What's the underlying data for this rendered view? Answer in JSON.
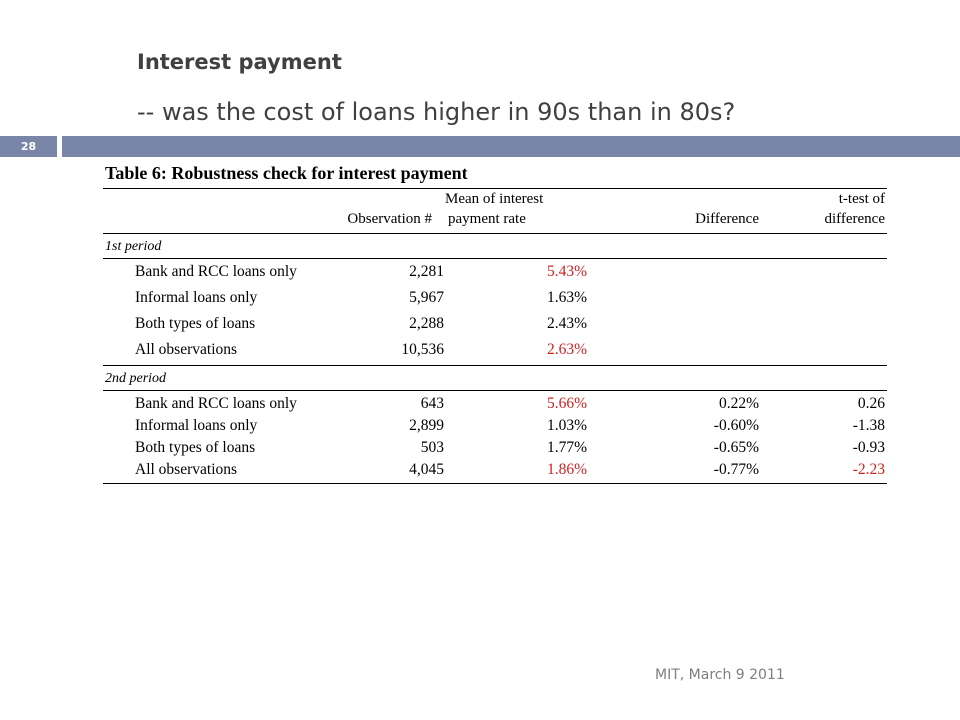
{
  "slide": {
    "title": "Interest payment",
    "subtitle": "-- was the cost of loans higher in 90s than in 80s?",
    "number": "28",
    "footer": "MIT, March 9 2011"
  },
  "table": {
    "caption": "Table 6: Robustness check for interest payment",
    "headers": {
      "obs": "Observation #",
      "mean_line1": "Mean of interest",
      "mean_line2": "payment rate",
      "diff": "Difference",
      "ttest_line1": "t-test of",
      "ttest_line2": "difference"
    },
    "period1": {
      "label": "1st period",
      "rows": [
        {
          "label": "Bank and RCC loans only",
          "obs": "2,281",
          "mean": "5.43%",
          "mean_highlight": true
        },
        {
          "label": "Informal loans only",
          "obs": "5,967",
          "mean": "1.63%",
          "mean_highlight": false
        },
        {
          "label": "Both types of loans",
          "obs": "2,288",
          "mean": "2.43%",
          "mean_highlight": false
        },
        {
          "label": "All observations",
          "obs": "10,536",
          "mean": "2.63%",
          "mean_highlight": true
        }
      ]
    },
    "period2": {
      "label": "2nd period",
      "rows": [
        {
          "label": "Bank and RCC loans only",
          "obs": "643",
          "mean": "5.66%",
          "diff": "0.22%",
          "ttest": "0.26",
          "mean_highlight": true,
          "ttest_highlight": false
        },
        {
          "label": "Informal loans only",
          "obs": "2,899",
          "mean": "1.03%",
          "diff": "-0.60%",
          "ttest": "-1.38",
          "mean_highlight": false,
          "ttest_highlight": false
        },
        {
          "label": "Both types of loans",
          "obs": "503",
          "mean": "1.77%",
          "diff": "-0.65%",
          "ttest": "-0.93",
          "mean_highlight": false,
          "ttest_highlight": false
        },
        {
          "label": "All observations",
          "obs": "4,045",
          "mean": "1.86%",
          "diff": "-0.77%",
          "ttest": "-2.23",
          "mean_highlight": true,
          "ttest_highlight": true
        }
      ]
    }
  },
  "colors": {
    "accent_bar": "#7a86a8",
    "highlight": "#d02020",
    "title_text": "#404040"
  }
}
